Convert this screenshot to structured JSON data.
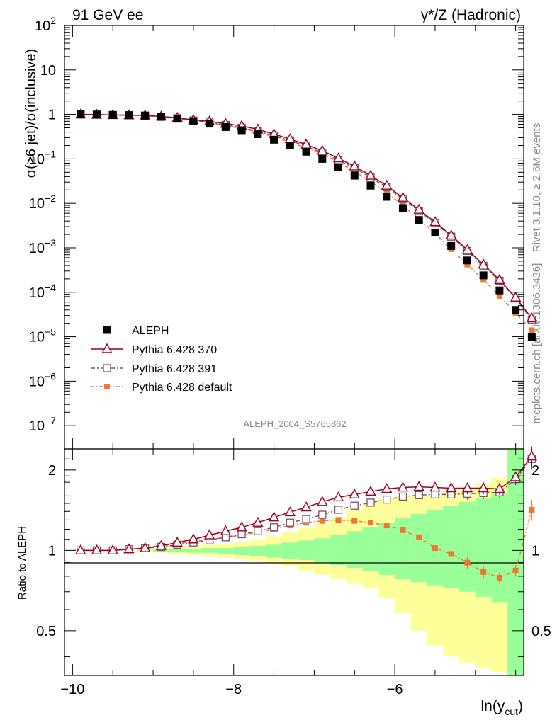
{
  "header": {
    "left": "91 GeV ee",
    "right": "γ*/Z (Hadronic)"
  },
  "side": {
    "rivet": "Rivet 3.1.10, ≥ 2.6M events",
    "mcplots": "mcplots.cern.ch [arXiv:1306.3436]"
  },
  "colors": {
    "aleph": "#000000",
    "p370": "#990022",
    "p391": "#775566",
    "pdef": "#ee7733",
    "band_yellow": "#ffff99",
    "band_green": "#99ff99"
  },
  "chart_data": [
    {
      "type": "scatter",
      "title": "",
      "ylabel": "σ(≥6 jet)/σ(inclusive)",
      "yscale": "log",
      "ylim": [
        3e-08,
        100
      ],
      "xlim": [
        -10.1,
        -4.4
      ],
      "watermark": "ALEPH_2004_S5765862",
      "ytick_labels": [
        {
          "v": 100,
          "b": "10",
          "e": "2"
        },
        {
          "v": 10,
          "b": "10",
          "e": ""
        },
        {
          "v": 1,
          "b": "1",
          "e": ""
        },
        {
          "v": 0.1,
          "b": "10",
          "e": "−1"
        },
        {
          "v": 0.01,
          "b": "10",
          "e": "−2"
        },
        {
          "v": 0.001,
          "b": "10",
          "e": "−3"
        },
        {
          "v": 0.0001,
          "b": "10",
          "e": "−4"
        },
        {
          "v": 1e-05,
          "b": "10",
          "e": "−5"
        },
        {
          "v": 1e-06,
          "b": "10",
          "e": "−6"
        },
        {
          "v": 1e-07,
          "b": "10",
          "e": "−7"
        }
      ],
      "x": [
        -9.9,
        -9.7,
        -9.5,
        -9.3,
        -9.1,
        -8.9,
        -8.7,
        -8.5,
        -8.3,
        -8.1,
        -7.9,
        -7.7,
        -7.5,
        -7.3,
        -7.1,
        -6.9,
        -6.7,
        -6.5,
        -6.3,
        -6.1,
        -5.9,
        -5.7,
        -5.5,
        -5.3,
        -5.1,
        -4.9,
        -4.7,
        -4.5
      ],
      "legend": [
        {
          "name": "ALEPH",
          "key": "aleph"
        },
        {
          "name": "Pythia 6.428 370",
          "key": "p370"
        },
        {
          "name": "Pythia 6.428 391",
          "key": "p391"
        },
        {
          "name": "Pythia 6.428 default",
          "key": "pdef"
        }
      ],
      "series": [
        {
          "name": "ALEPH",
          "key": "aleph",
          "values": [
            1.0,
            0.99,
            0.97,
            0.96,
            0.94,
            0.88,
            0.8,
            0.7,
            0.62,
            0.52,
            0.44,
            0.36,
            0.27,
            0.2,
            0.145,
            0.1,
            0.065,
            0.042,
            0.025,
            0.014,
            0.0078,
            0.0042,
            0.0022,
            0.0011,
            0.00052,
            0.00024,
            0.00011,
            4e-05
          ]
        },
        {
          "name": "Pythia 6.428 370",
          "key": "p370",
          "values": [
            1.0,
            0.99,
            0.97,
            0.96,
            0.95,
            0.9,
            0.84,
            0.75,
            0.7,
            0.62,
            0.55,
            0.46,
            0.36,
            0.28,
            0.21,
            0.152,
            0.103,
            0.068,
            0.042,
            0.025,
            0.0134,
            0.0072,
            0.0038,
            0.0019,
            0.0009,
            0.00042,
            0.00019,
            7.6e-05
          ]
        },
        {
          "name": "Pythia 6.428 391",
          "key": "p391",
          "values": [
            1.0,
            0.99,
            0.97,
            0.96,
            0.94,
            0.89,
            0.82,
            0.73,
            0.66,
            0.58,
            0.5,
            0.42,
            0.33,
            0.26,
            0.19,
            0.138,
            0.093,
            0.062,
            0.038,
            0.023,
            0.0125,
            0.0067,
            0.0036,
            0.00178,
            0.00085,
            0.00039,
            0.000182,
            7.38e-05
          ]
        },
        {
          "name": "Pythia 6.428 default",
          "key": "pdef",
          "values": [
            1.0,
            0.99,
            0.97,
            0.96,
            0.94,
            0.89,
            0.82,
            0.73,
            0.65,
            0.56,
            0.48,
            0.4,
            0.31,
            0.24,
            0.175,
            0.128,
            0.084,
            0.052,
            0.031,
            0.0176,
            0.0089,
            0.0045,
            0.0021,
            0.00093,
            0.00042,
            0.00019,
            8.28e-05,
            3.4e-05
          ]
        }
      ],
      "last_point": {
        "x": -4.3,
        "aleph": 1e-05,
        "p370": 2.6e-05,
        "p391": 2.4e-05,
        "pdef": 1.4e-05
      }
    },
    {
      "type": "scatter",
      "title": "",
      "xlabel": "ln(y",
      "xlabel_sub": "cut",
      "xlabel_close": ")",
      "ylabel": "Ratio to ALEPH",
      "yscale": "log",
      "ylim": [
        0.34,
        2.4
      ],
      "xlim": [
        -10.1,
        -4.4
      ],
      "xticks": [
        {
          "v": -10,
          "label": "−10"
        },
        {
          "v": -8,
          "label": "−8"
        },
        {
          "v": -6,
          "label": "−6"
        }
      ],
      "ytick_labels": [
        {
          "v": 0.5,
          "label": "0.5"
        },
        {
          "v": 1,
          "label": "1"
        },
        {
          "v": 2,
          "label": "2"
        }
      ],
      "x": [
        -9.9,
        -9.7,
        -9.5,
        -9.3,
        -9.1,
        -8.9,
        -8.7,
        -8.5,
        -8.3,
        -8.1,
        -7.9,
        -7.7,
        -7.5,
        -7.3,
        -7.1,
        -6.9,
        -6.7,
        -6.5,
        -6.3,
        -6.1,
        -5.9,
        -5.7,
        -5.5,
        -5.3,
        -5.1,
        -4.9,
        -4.7,
        -4.5,
        -4.3
      ],
      "bands": {
        "yellow_hi": [
          1.0,
          1.0,
          1.0,
          1.0,
          1.01,
          1.02,
          1.03,
          1.04,
          1.05,
          1.06,
          1.08,
          1.1,
          1.13,
          1.17,
          1.21,
          1.26,
          1.33,
          1.41,
          1.5,
          1.56,
          1.59,
          1.6,
          1.6,
          1.65,
          1.7,
          1.78,
          1.87,
          2.4,
          2.4
        ],
        "yellow_lo": [
          1.0,
          1.0,
          1.0,
          1.0,
          0.99,
          0.98,
          0.97,
          0.96,
          0.95,
          0.94,
          0.93,
          0.91,
          0.89,
          0.87,
          0.84,
          0.81,
          0.78,
          0.75,
          0.72,
          0.66,
          0.58,
          0.5,
          0.44,
          0.4,
          0.38,
          0.36,
          0.35,
          0.34,
          0.34
        ],
        "green_hi": [
          1.0,
          1.0,
          1.0,
          1.0,
          1.0,
          1.01,
          1.01,
          1.01,
          1.02,
          1.02,
          1.03,
          1.04,
          1.05,
          1.07,
          1.09,
          1.11,
          1.14,
          1.18,
          1.22,
          1.27,
          1.33,
          1.37,
          1.42,
          1.47,
          1.52,
          1.57,
          1.63,
          2.4,
          2.4
        ],
        "green_lo": [
          1.0,
          1.0,
          1.0,
          1.0,
          1.0,
          0.99,
          0.99,
          0.98,
          0.98,
          0.97,
          0.96,
          0.95,
          0.94,
          0.93,
          0.92,
          0.9,
          0.88,
          0.86,
          0.84,
          0.81,
          0.78,
          0.76,
          0.74,
          0.72,
          0.7,
          0.67,
          0.64,
          0.34,
          0.34
        ]
      },
      "series": [
        {
          "name": "Pythia 6.428 370",
          "key": "p370",
          "values": [
            1.0,
            1.0,
            1.0,
            1.01,
            1.02,
            1.04,
            1.07,
            1.1,
            1.14,
            1.18,
            1.22,
            1.27,
            1.33,
            1.39,
            1.45,
            1.52,
            1.58,
            1.62,
            1.66,
            1.7,
            1.72,
            1.73,
            1.72,
            1.71,
            1.71,
            1.71,
            1.7,
            1.88,
            2.25
          ]
        },
        {
          "name": "Pythia 6.428 391",
          "key": "p391",
          "values": [
            1.0,
            1.0,
            1.0,
            1.01,
            1.02,
            1.03,
            1.05,
            1.07,
            1.09,
            1.12,
            1.15,
            1.18,
            1.22,
            1.27,
            1.31,
            1.36,
            1.42,
            1.47,
            1.51,
            1.55,
            1.59,
            1.61,
            1.62,
            1.62,
            1.63,
            1.64,
            1.65,
            1.85,
            2.2
          ]
        },
        {
          "name": "Pythia 6.428 default",
          "key": "pdef",
          "values": [
            1.0,
            1.0,
            1.0,
            1.01,
            1.02,
            1.04,
            1.06,
            1.08,
            1.1,
            1.12,
            1.14,
            1.17,
            1.2,
            1.24,
            1.27,
            1.29,
            1.3,
            1.29,
            1.27,
            1.24,
            1.19,
            1.12,
            1.02,
            0.97,
            0.9,
            0.83,
            0.79,
            0.84,
            1.42
          ]
        }
      ]
    }
  ]
}
